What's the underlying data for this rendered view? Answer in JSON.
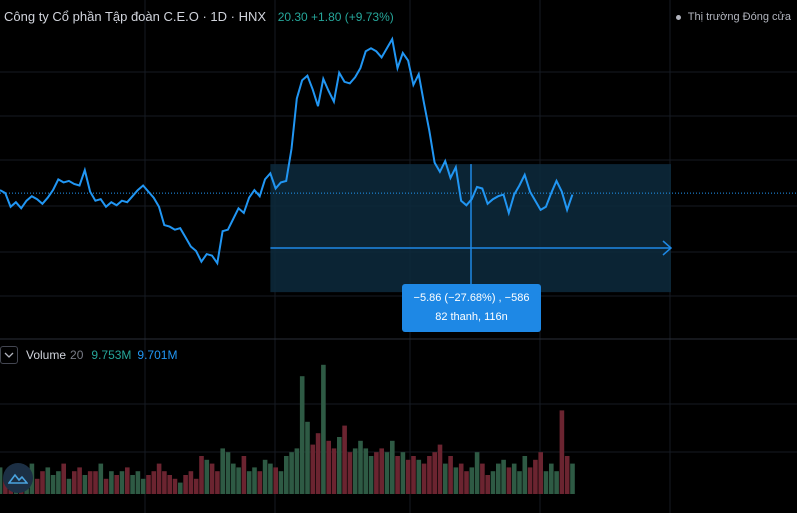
{
  "header": {
    "title": "Công ty Cổ phần Tập đoàn C.E.O · 1D · HNX",
    "quote": "20.30 +1.80 (+9.73%)"
  },
  "market_status": "Thị trường Đóng cửa",
  "volume_legend": {
    "label": "Volume",
    "period": "20",
    "value1": "9.753M",
    "value2": "9.701M"
  },
  "measure_tooltip": {
    "line1": "−5.86 (−27.68%) , −586",
    "line2": "82 thanh, 116n"
  },
  "colors": {
    "price_line": "#2196f3",
    "volume_up": "#2e5a44",
    "volume_down": "#6b2430",
    "measure_box": "#0d2a3d",
    "tooltip_bg": "#1e88e5"
  },
  "icons": {
    "collapse": "chevron-down-icon",
    "logo": "tradingview-logo-icon"
  },
  "chart_data": {
    "type": "line",
    "title": "Công ty Cổ phần Tập đoàn C.E.O · 1D · HNX",
    "xlabel": "",
    "ylabel": "",
    "ylim": [
      12.5,
      31
    ],
    "series": [
      {
        "name": "Price",
        "values": [
          20.5,
          20.3,
          19.4,
          19.7,
          19.3,
          19.8,
          20.1,
          19.9,
          19.6,
          20.0,
          20.5,
          21.2,
          21.0,
          21.1,
          20.9,
          20.8,
          21.8,
          20.4,
          19.8,
          19.9,
          19.4,
          19.7,
          19.5,
          19.8,
          19.7,
          20.1,
          20.5,
          20.8,
          20.4,
          20.0,
          19.4,
          18.2,
          18.1,
          17.9,
          18.0,
          17.4,
          16.8,
          16.5,
          15.8,
          16.3,
          16.2,
          15.7,
          17.8,
          17.9,
          18.6,
          19.3,
          19.0,
          20.0,
          20.5,
          20.1,
          21.2,
          21.6,
          20.6,
          21.0,
          21.1,
          23.2,
          26.5,
          27.7,
          28.0,
          27.1,
          26.0,
          27.8,
          27.0,
          26.3,
          28.2,
          27.6,
          27.5,
          27.9,
          28.5,
          29.6,
          29.8,
          29.6,
          29.2,
          29.8,
          30.4,
          28.5,
          29.5,
          29.0,
          27.4,
          28.1,
          26.2,
          24.4,
          22.3,
          21.7,
          22.4,
          21.3,
          22.0,
          19.8,
          19.5,
          19.9,
          20.7,
          20.6,
          19.6,
          19.9,
          20.1,
          20.2,
          19.0,
          20.2,
          20.8,
          21.5,
          20.4,
          19.8,
          19.2,
          19.4,
          20.3,
          21.1,
          20.4,
          19.2,
          20.2
        ]
      },
      {
        "name": "Volume",
        "values": [
          0.35,
          0.2,
          0.3,
          0.25,
          0.35,
          0.3,
          0.4,
          0.2,
          0.3,
          0.35,
          0.25,
          0.3,
          0.4,
          0.2,
          0.3,
          0.35,
          0.25,
          0.3,
          0.3,
          0.4,
          0.2,
          0.3,
          0.25,
          0.3,
          0.35,
          0.25,
          0.3,
          0.2,
          0.25,
          0.3,
          0.4,
          0.3,
          0.25,
          0.2,
          0.15,
          0.25,
          0.3,
          0.2,
          0.5,
          0.45,
          0.4,
          0.3,
          0.6,
          0.55,
          0.4,
          0.35,
          0.5,
          0.3,
          0.35,
          0.3,
          0.45,
          0.4,
          0.35,
          0.3,
          0.5,
          0.55,
          0.6,
          1.55,
          0.95,
          0.65,
          0.8,
          1.7,
          0.7,
          0.6,
          0.75,
          0.9,
          0.55,
          0.6,
          0.7,
          0.6,
          0.5,
          0.55,
          0.6,
          0.55,
          0.7,
          0.5,
          0.55,
          0.45,
          0.5,
          0.45,
          0.4,
          0.5,
          0.55,
          0.65,
          0.4,
          0.5,
          0.35,
          0.4,
          0.3,
          0.35,
          0.55,
          0.4,
          0.25,
          0.3,
          0.4,
          0.45,
          0.35,
          0.4,
          0.3,
          0.5,
          0.35,
          0.45,
          0.55,
          0.3,
          0.4,
          0.3,
          1.1,
          0.5,
          0.4
        ]
      }
    ],
    "horizontal_line": 20.3,
    "measure": {
      "start_index": 48,
      "end_index": 108,
      "low": 14.0,
      "high": 22.4,
      "target": 18.6
    },
    "grid": false
  }
}
